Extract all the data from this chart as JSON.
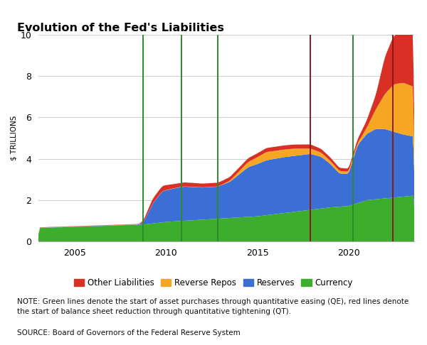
{
  "title": "Evolution of the Fed's Liabilities",
  "ylabel": "$ TRILLIONS",
  "xlim": [
    2003.0,
    2023.6
  ],
  "ylim": [
    0,
    10
  ],
  "yticks": [
    0,
    2,
    4,
    6,
    8,
    10
  ],
  "colors": {
    "currency": "#3dae2b",
    "reserves": "#3b6fd4",
    "reverse_repos": "#f5a623",
    "other": "#d93025"
  },
  "green_lines": [
    2008.75,
    2010.83,
    2012.83,
    2020.25
  ],
  "red_lines": [
    2017.92,
    2022.42
  ],
  "legend": [
    {
      "label": "Other Liabilities",
      "color": "#d93025"
    },
    {
      "label": "Reverse Repos",
      "color": "#f5a623"
    },
    {
      "label": "Reserves",
      "color": "#3b6fd4"
    },
    {
      "label": "Currency",
      "color": "#3dae2b"
    }
  ],
  "note": "NOTE: Green lines denote the start of asset purchases through quantitative easing (QE), red lines denote\nthe start of balance sheet reduction through quantitative tightening (QT).",
  "source": "SOURCE: Board of Governors of the Federal Reserve System",
  "background_color": "#ffffff",
  "grid_color": "#d0d0d0"
}
